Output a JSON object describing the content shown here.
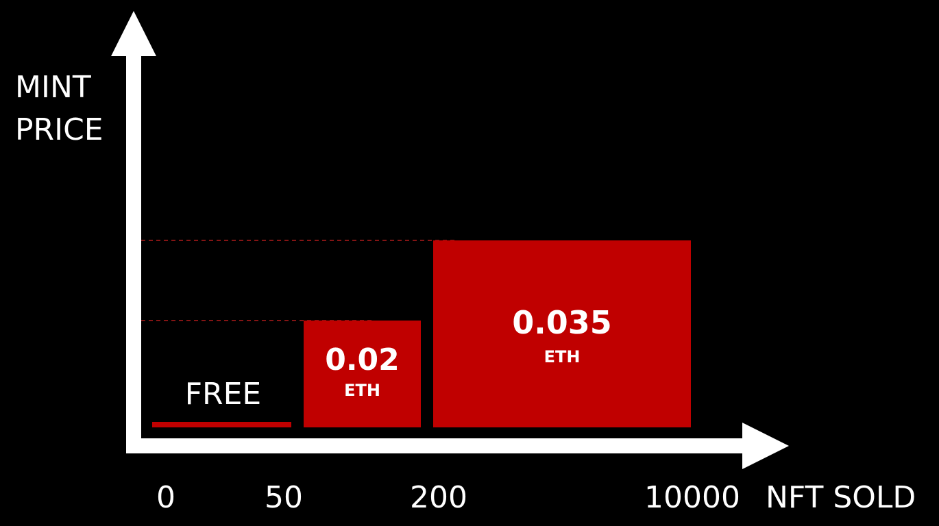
{
  "chart_data": {
    "type": "bar",
    "title": "",
    "ylabel": "MINT PRICE",
    "ylabel_lines": [
      "MINT",
      "PRICE"
    ],
    "xlabel": "NFT SOLD",
    "x_ticks": [
      "0",
      "50",
      "200",
      "10000"
    ],
    "unit": "ETH",
    "grid": false,
    "dashed_reference_lines": true,
    "series": [
      {
        "tiers": [
          {
            "from": 0,
            "to": 50,
            "price": 0,
            "label": "FREE",
            "unit": ""
          },
          {
            "from": 50,
            "to": 200,
            "price": 0.02,
            "label": "0.02",
            "unit": "ETH"
          },
          {
            "from": 200,
            "to": 10000,
            "price": 0.035,
            "label": "0.035",
            "unit": "ETH"
          }
        ]
      }
    ],
    "colors": {
      "background": "#000000",
      "axis": "#ffffff",
      "bar": "#c00000",
      "dashed_line": "#b01a1a",
      "text": "#ffffff"
    }
  }
}
